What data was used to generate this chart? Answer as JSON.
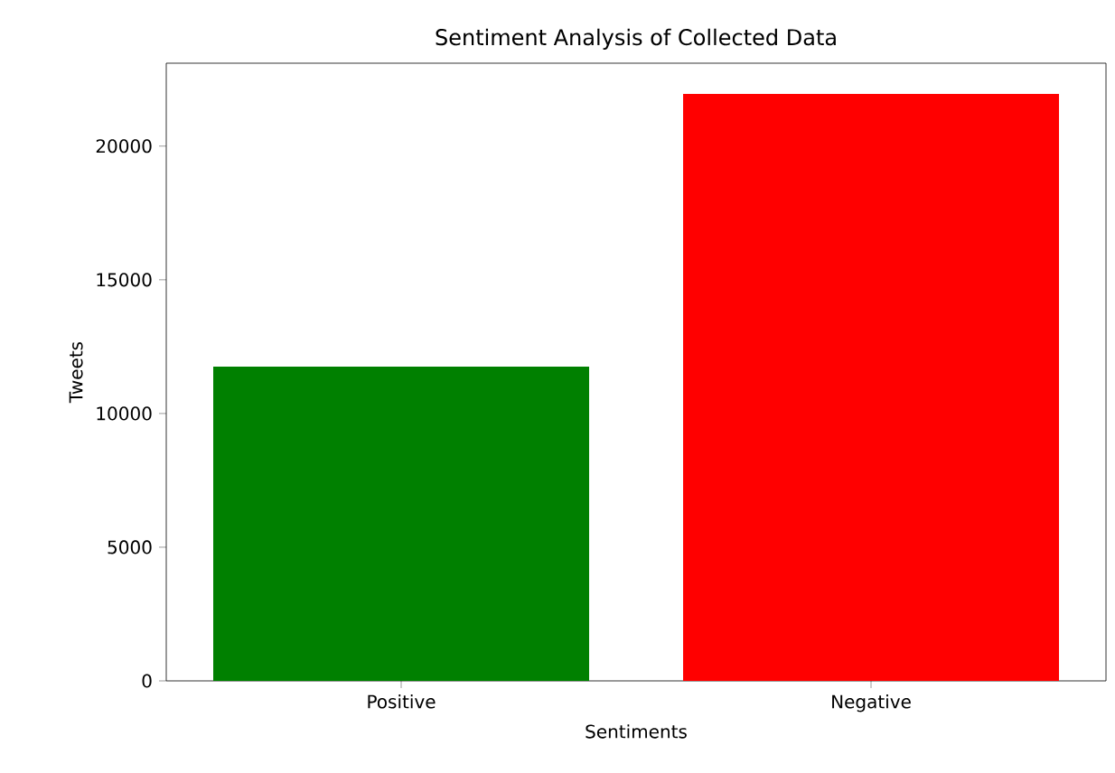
{
  "chart_data": {
    "type": "bar",
    "title": "Sentiment Analysis of Collected Data",
    "xlabel": "Sentiments",
    "ylabel": "Tweets",
    "categories": [
      "Positive",
      "Negative"
    ],
    "values": [
      11750,
      21950
    ],
    "colors": [
      "#008000",
      "#ff0000"
    ],
    "ylim": [
      0,
      23100
    ],
    "yticks": [
      0,
      5000,
      10000,
      15000,
      20000
    ]
  }
}
